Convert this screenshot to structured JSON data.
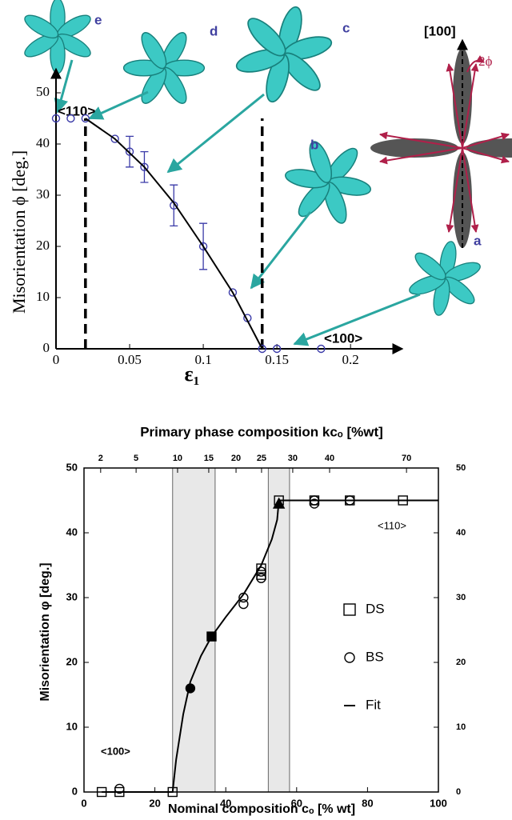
{
  "chart_data": [
    {
      "type": "scatter",
      "xlabel": "ε₁",
      "ylabel": "Misorientation ϕ  [deg.]",
      "xlim": [
        0,
        0.22
      ],
      "ylim": [
        0,
        50
      ],
      "xticks": [
        0,
        0.05,
        0.1,
        0.15,
        0.2
      ],
      "yticks": [
        0,
        10,
        20,
        30,
        40,
        50
      ],
      "vlines": [
        0.02,
        0.14
      ],
      "annotations": [
        "<110>",
        "<100>",
        "a",
        "b",
        "c",
        "d",
        "e",
        "[100]",
        "2ϕ"
      ],
      "series": [
        {
          "marker": "circle",
          "color": "#3a3aa8",
          "fill": "none",
          "x": [
            0,
            0.01,
            0.02,
            0.04,
            0.05,
            0.06,
            0.08,
            0.1,
            0.12,
            0.13,
            0.14,
            0.15,
            0.18
          ],
          "values": [
            45,
            45,
            45,
            41,
            38.5,
            35.5,
            28,
            20,
            11,
            6,
            0,
            0,
            0
          ],
          "errors": [
            null,
            null,
            null,
            null,
            3,
            3,
            4,
            4.5,
            null,
            null,
            null,
            null,
            null
          ]
        },
        {
          "marker": "line",
          "color": "#000000",
          "x": [
            0.02,
            0.04,
            0.06,
            0.08,
            0.1,
            0.12,
            0.14
          ],
          "values": [
            45,
            41,
            35.5,
            28.5,
            20,
            11,
            0
          ]
        }
      ]
    },
    {
      "type": "scatter",
      "title": "Primary phase composition kcₒ [%wt]",
      "xlabel": "Nominal composition cₒ [% wt]",
      "ylabel": "Misorientation φ [deg.]",
      "xlim": [
        0,
        100
      ],
      "ylim": [
        0,
        50
      ],
      "y2lim": [
        0,
        50
      ],
      "box": true,
      "xticks": [
        0,
        20,
        40,
        60,
        80,
        100
      ],
      "yticks": [
        0,
        10,
        20,
        30,
        40,
        50
      ],
      "y2ticks": [
        0,
        10,
        20,
        30,
        40,
        50
      ],
      "x2ticks": [
        {
          "value": 4.7,
          "label": "2"
        },
        {
          "value": 14.7,
          "label": "5"
        },
        {
          "value": 26.4,
          "label": "10"
        },
        {
          "value": 35.2,
          "label": "15"
        },
        {
          "value": 42.9,
          "label": "20"
        },
        {
          "value": 50.1,
          "label": "25"
        },
        {
          "value": 58.9,
          "label": "30"
        },
        {
          "value": 69.3,
          "label": "40"
        },
        {
          "value": 91,
          "label": "70"
        }
      ],
      "bands": [
        [
          25,
          37
        ],
        [
          52,
          58
        ]
      ],
      "annotations": [
        "<100>",
        "<110>"
      ],
      "series": [
        {
          "name": "DS",
          "marker": "square",
          "color": "#000000",
          "fill": "none",
          "x": [
            5,
            10,
            25,
            50,
            50,
            55,
            65,
            75,
            90
          ],
          "values": [
            0,
            0,
            0,
            34.5,
            33.5,
            45,
            45,
            45,
            45
          ]
        },
        {
          "name": "BS",
          "marker": "circle",
          "color": "#000000",
          "fill": "none",
          "x": [
            10,
            45,
            45,
            50,
            50,
            65,
            65,
            75
          ],
          "values": [
            0.5,
            30,
            29,
            34,
            33,
            45,
            44.5,
            45
          ]
        },
        {
          "name": "Fit",
          "marker": "line",
          "color": "#000000",
          "x": [
            5,
            25,
            26,
            28,
            30,
            33,
            36,
            40,
            45,
            50,
            53,
            54.5,
            55,
            100
          ],
          "values": [
            0,
            0,
            5,
            12,
            17,
            21,
            24,
            27,
            30.5,
            35,
            39,
            42,
            45,
            45
          ]
        },
        {
          "marker": "square",
          "color": "#000000",
          "fill": "#000000",
          "x": [
            36
          ],
          "values": [
            24
          ]
        },
        {
          "marker": "circle",
          "color": "#000000",
          "fill": "#000000",
          "x": [
            30
          ],
          "values": [
            16
          ]
        },
        {
          "marker": "triangle",
          "color": "#000000",
          "fill": "#000000",
          "x": [
            55
          ],
          "values": [
            44.5
          ]
        }
      ]
    }
  ]
}
